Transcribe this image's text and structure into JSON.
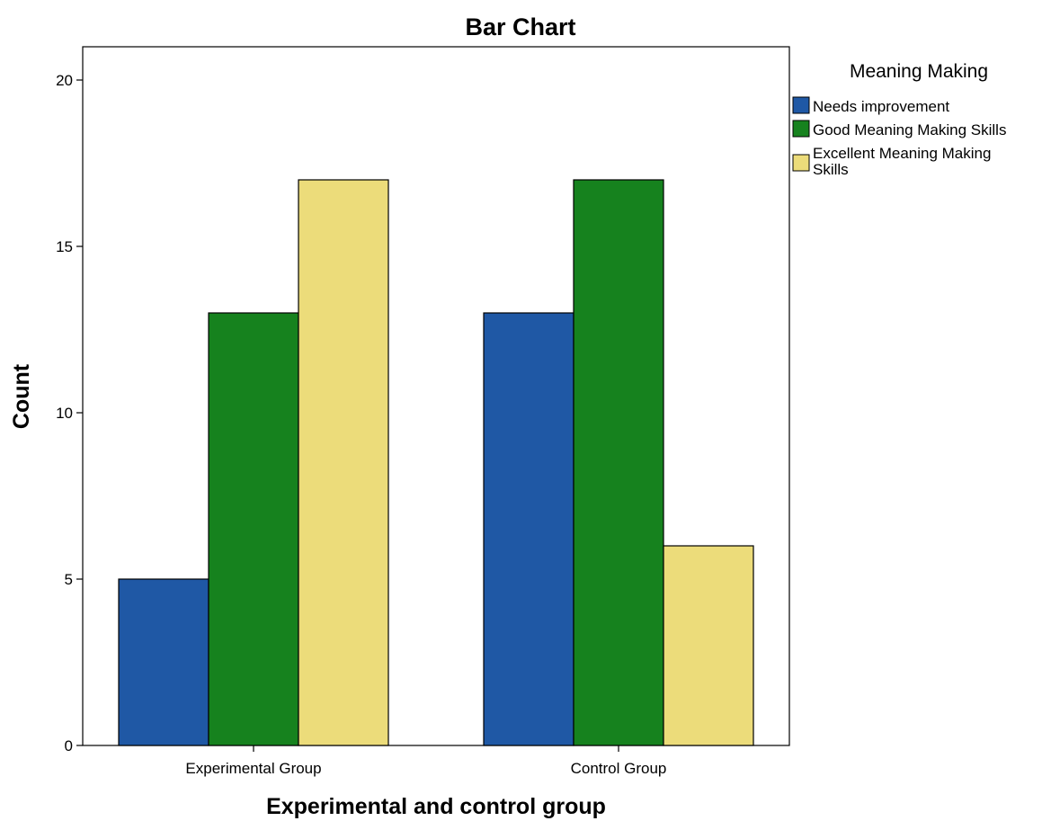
{
  "chart_data": {
    "type": "bar",
    "title": "Bar Chart",
    "xlabel": "Experimental and control group",
    "ylabel": "Count",
    "categories": [
      "Experimental Group",
      "Control Group"
    ],
    "series": [
      {
        "name": "Needs improvement",
        "values": [
          5,
          13
        ],
        "color": "#1f58a5"
      },
      {
        "name": "Good Meaning Making Skills",
        "values": [
          13,
          17
        ],
        "color": "#16821e"
      },
      {
        "name": "Excellent Meaning Making Skills",
        "values": [
          17,
          6
        ],
        "color": "#ecdc7a"
      }
    ],
    "legend_title": "Meaning Making",
    "legend_position": "right",
    "ylim": [
      0,
      21
    ],
    "yticks": [
      0,
      5,
      10,
      15,
      20
    ],
    "grid": false
  }
}
